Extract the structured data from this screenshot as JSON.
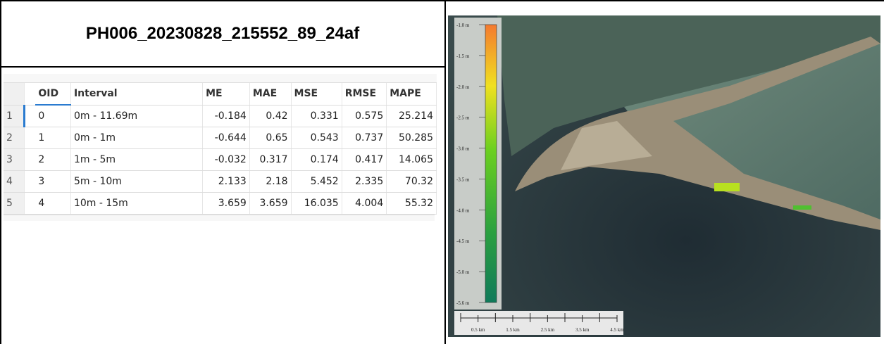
{
  "header": {
    "title": "PH006_20230828_215552_89_24af"
  },
  "table": {
    "columns": [
      "OID",
      "Interval",
      "ME",
      "MAE",
      "MSE",
      "RMSE",
      "MAPE"
    ],
    "rows": [
      {
        "index": "1",
        "cells": [
          "0",
          "0m - 11.69m",
          "-0.184",
          "0.42",
          "0.331",
          "0.575",
          "25.214"
        ]
      },
      {
        "index": "2",
        "cells": [
          "1",
          "0m - 1m",
          "-0.644",
          "0.65",
          "0.543",
          "0.737",
          "50.285"
        ]
      },
      {
        "index": "3",
        "cells": [
          "2",
          "1m - 5m",
          "-0.032",
          "0.317",
          "0.174",
          "0.417",
          "14.065"
        ]
      },
      {
        "index": "4",
        "cells": [
          "3",
          "5m - 10m",
          "2.133",
          "2.18",
          "5.452",
          "2.335",
          "70.32"
        ]
      },
      {
        "index": "5",
        "cells": [
          "4",
          "10m - 15m",
          "3.659",
          "3.659",
          "16.035",
          "4.004",
          "55.32"
        ]
      }
    ]
  },
  "map": {
    "legend": [
      "-1.0 m",
      "-1.5 m",
      "-2.0 m",
      "-2.5 m",
      "-3.0 m",
      "-3.5 m",
      "-4.0 m",
      "-4.5 m",
      "-5.0 m",
      "-5.6 m"
    ],
    "scale": [
      "0.5 km",
      "1.5 km",
      "2.5 km",
      "3.5 km",
      "4.5 km"
    ]
  }
}
